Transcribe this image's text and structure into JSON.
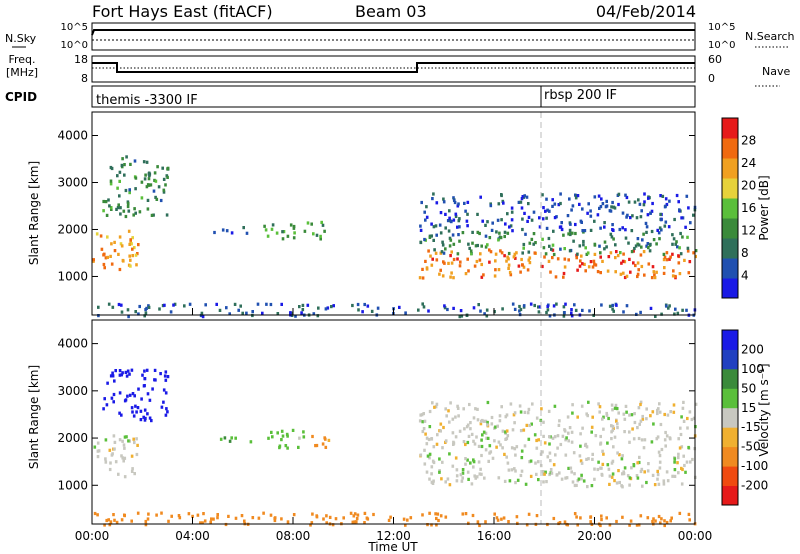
{
  "header": {
    "station": "Fort Hays East (fitACF)",
    "beam": "Beam 03",
    "date": "04/Feb/2014"
  },
  "noise_panel": {
    "left_label": "N.Sky",
    "right_label": "N.Search",
    "left_ticks": [
      "10^5",
      "10^0"
    ],
    "right_ticks": [
      "10^5",
      "10^0"
    ]
  },
  "freq_panel": {
    "left_label_1": "Freq.",
    "left_label_2": "[MHz]",
    "right_label": "Nave",
    "left_ticks": [
      "18",
      "8"
    ],
    "right_ticks": [
      "60",
      "0"
    ]
  },
  "cpid_panel": {
    "label": "CPID",
    "modes": [
      "themis -3300 IF",
      "rbsp 200 IF"
    ]
  },
  "x_axis": {
    "label": "Time UT",
    "ticks": [
      "00:00",
      "04:00",
      "08:00",
      "12:00",
      "16:00",
      "20:00",
      "00:00"
    ]
  },
  "power_panel": {
    "ylabel": "Slant Range [km]",
    "yticks": [
      "4000",
      "3000",
      "2000",
      "1000"
    ],
    "cbar_label": "Power [dB]",
    "cbar_ticks": [
      "28",
      "24",
      "20",
      "16",
      "12",
      "8",
      "4"
    ]
  },
  "velocity_panel": {
    "ylabel": "Slant Range [km]",
    "yticks": [
      "4000",
      "3000",
      "2000",
      "1000"
    ],
    "cbar_label": "Velocity [m s⁻¹]",
    "cbar_ticks": [
      "200",
      "100",
      "50",
      "15",
      "-15",
      "-50",
      "-100",
      "-200"
    ]
  },
  "colors": {
    "power_scale": [
      "#1a1ae6",
      "#2050b0",
      "#2f6f5a",
      "#3a8a3a",
      "#5abf3a",
      "#e6d23a",
      "#f0a020",
      "#f06a10",
      "#e61a1a"
    ],
    "velocity_scale": [
      "#e61a1a",
      "#f04a10",
      "#f08a20",
      "#f0b030",
      "#c8c8c0",
      "#5abf3a",
      "#3a8a3a",
      "#2040c0",
      "#1a1ae6"
    ]
  },
  "chart_data": [
    {
      "type": "line",
      "title": "",
      "xlabel": "",
      "x_range_hours": [
        0,
        24
      ],
      "series": [
        {
          "name": "N.Sky",
          "y_log10_approx": 2.5
        },
        {
          "name": "N.Search",
          "y_log10_approx": 2.2
        }
      ]
    },
    {
      "type": "line",
      "x_range_hours": [
        0,
        24
      ],
      "series": [
        {
          "name": "Freq.",
          "x": [
            0,
            1,
            1,
            13,
            13,
            24
          ],
          "values": [
            15,
            15,
            11,
            11,
            15,
            15
          ]
        },
        {
          "name": "Nave",
          "x": [
            0,
            24
          ],
          "values": [
            22,
            22
          ]
        }
      ]
    },
    {
      "type": "heatmap",
      "xlabel": "Time UT",
      "ylabel": "Slant Range [km]",
      "x_range_hours": [
        0,
        24
      ],
      "ylim": [
        180,
        4500
      ],
      "value_label": "Power [dB]",
      "value_range": [
        0,
        30
      ],
      "blobs": [
        {
          "t0": 0.0,
          "t1": 1.8,
          "r0": 1100,
          "r1": 2000,
          "value": 22
        },
        {
          "t0": 0.4,
          "t1": 3.0,
          "r0": 2300,
          "r1": 3600,
          "value": 10
        },
        {
          "t0": 4.8,
          "t1": 6.5,
          "r0": 1950,
          "r1": 2100,
          "value": 6
        },
        {
          "t0": 6.8,
          "t1": 9.3,
          "r0": 1800,
          "r1": 2200,
          "value": 12
        },
        {
          "t0": 13.0,
          "t1": 24.0,
          "r0": 1000,
          "r1": 1600,
          "value": 24
        },
        {
          "t0": 13.0,
          "t1": 24.0,
          "r0": 1500,
          "r1": 2000,
          "value": 10
        },
        {
          "t0": 13.0,
          "t1": 24.0,
          "r0": 2000,
          "r1": 2800,
          "value": 5
        },
        {
          "t0": 0.0,
          "t1": 24.0,
          "r0": 180,
          "r1": 450,
          "value": 6
        }
      ]
    },
    {
      "type": "heatmap",
      "xlabel": "Time UT",
      "ylabel": "Slant Range [km]",
      "x_range_hours": [
        0,
        24
      ],
      "ylim": [
        180,
        4500
      ],
      "value_label": "Velocity [m s⁻¹]",
      "value_range": [
        -250,
        250
      ],
      "blobs": [
        {
          "t0": 0.0,
          "t1": 1.8,
          "r0": 1200,
          "r1": 2100,
          "value": 0
        },
        {
          "t0": 0.4,
          "t1": 3.0,
          "r0": 2400,
          "r1": 3500,
          "value": 220
        },
        {
          "t0": 4.8,
          "t1": 6.5,
          "r0": 1950,
          "r1": 2100,
          "value": 40
        },
        {
          "t0": 6.8,
          "t1": 8.6,
          "r0": 1800,
          "r1": 2200,
          "value": 30
        },
        {
          "t0": 8.6,
          "t1": 9.4,
          "r0": 1800,
          "r1": 2200,
          "value": -60
        },
        {
          "t0": 13.0,
          "t1": 24.0,
          "r0": 1000,
          "r1": 2000,
          "value": 0
        },
        {
          "t0": 13.0,
          "t1": 24.0,
          "r0": 2000,
          "r1": 2800,
          "value": 0
        },
        {
          "t0": 0.0,
          "t1": 24.0,
          "r0": 180,
          "r1": 450,
          "value": -70
        }
      ]
    }
  ]
}
